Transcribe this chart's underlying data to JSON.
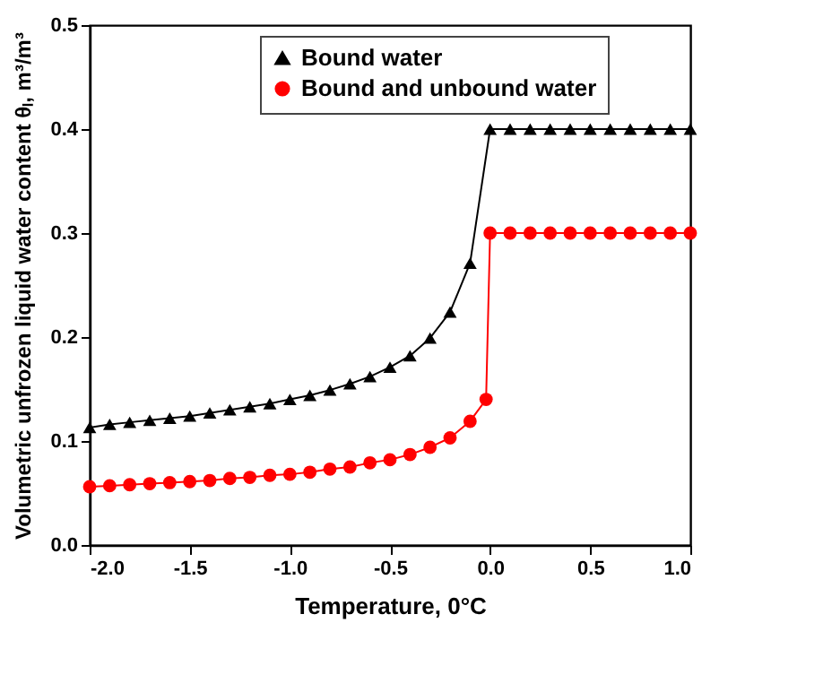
{
  "chart_data": {
    "type": "line",
    "xlabel": "Temperature, 0°C",
    "ylabel": "Volumetric unfrozen liquid water content θₗ, m³/m³",
    "xlim": [
      -2.0,
      1.0
    ],
    "ylim": [
      0.0,
      0.5
    ],
    "xticks": [
      {
        "value": -2,
        "label": "-2.0"
      },
      {
        "value": -1.5,
        "label": "-1.5"
      },
      {
        "value": -1,
        "label": "-1.0"
      },
      {
        "value": -0.5,
        "label": "-0.5"
      },
      {
        "value": 0,
        "label": "0.0"
      },
      {
        "value": 0.5,
        "label": "0.5"
      },
      {
        "value": 1,
        "label": "1.0"
      }
    ],
    "yticks": [
      {
        "value": 0,
        "label": "0.0"
      },
      {
        "value": 0.1,
        "label": "0.1"
      },
      {
        "value": 0.2,
        "label": "0.2"
      },
      {
        "value": 0.3,
        "label": "0.3"
      },
      {
        "value": 0.4,
        "label": "0.4"
      },
      {
        "value": 0.5,
        "label": "0.5"
      }
    ],
    "grid": false,
    "legend": "top",
    "series": [
      {
        "name": "Bound water",
        "color": "#000000",
        "marker": "triangle",
        "x": [
          -2.0,
          -1.9,
          -1.8,
          -1.7,
          -1.6,
          -1.5,
          -1.4,
          -1.3,
          -1.2,
          -1.1,
          -1.0,
          -0.9,
          -0.8,
          -0.7,
          -0.6,
          -0.5,
          -0.4,
          -0.3,
          -0.2,
          -0.1,
          0.0,
          0.1,
          0.2,
          0.3,
          0.4,
          0.5,
          0.6,
          0.7,
          0.8,
          0.9,
          1.0
        ],
        "values": [
          0.113,
          0.116,
          0.118,
          0.12,
          0.122,
          0.124,
          0.127,
          0.13,
          0.133,
          0.136,
          0.14,
          0.144,
          0.149,
          0.155,
          0.162,
          0.171,
          0.182,
          0.199,
          0.224,
          0.271,
          0.4,
          0.4,
          0.4,
          0.4,
          0.4,
          0.4,
          0.4,
          0.4,
          0.4,
          0.4,
          0.4
        ]
      },
      {
        "name": "Bound and unbound water",
        "color": "#ff0000",
        "marker": "circle",
        "x": [
          -2.0,
          -1.9,
          -1.8,
          -1.7,
          -1.6,
          -1.5,
          -1.4,
          -1.3,
          -1.2,
          -1.1,
          -1.0,
          -0.9,
          -0.8,
          -0.7,
          -0.6,
          -0.5,
          -0.4,
          -0.3,
          -0.2,
          -0.1,
          -0.02,
          0.0,
          0.1,
          0.2,
          0.3,
          0.4,
          0.5,
          0.6,
          0.7,
          0.8,
          0.9,
          1.0
        ],
        "values": [
          0.056,
          0.057,
          0.058,
          0.059,
          0.06,
          0.061,
          0.062,
          0.064,
          0.065,
          0.067,
          0.068,
          0.07,
          0.073,
          0.075,
          0.079,
          0.082,
          0.087,
          0.094,
          0.103,
          0.119,
          0.14,
          0.3,
          0.3,
          0.3,
          0.3,
          0.3,
          0.3,
          0.3,
          0.3,
          0.3,
          0.3,
          0.3
        ]
      }
    ]
  }
}
